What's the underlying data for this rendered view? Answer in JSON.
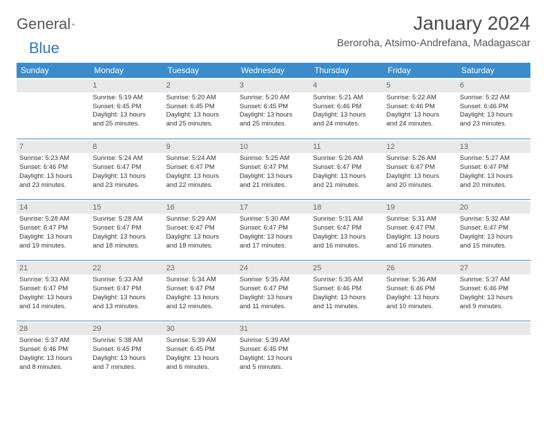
{
  "logo": {
    "word1": "General",
    "word2": "Blue"
  },
  "title": "January 2024",
  "location": "Beroroha, Atsimo-Andrefana, Madagascar",
  "colors": {
    "header_bg": "#3b8ccc",
    "header_text": "#ffffff",
    "daynum_bg": "#e8e8e8",
    "daynum_text": "#666666",
    "rule": "#3b8ccc",
    "body_text": "#333333",
    "logo_gray": "#555555",
    "logo_blue": "#2f78c4"
  },
  "day_headers": [
    "Sunday",
    "Monday",
    "Tuesday",
    "Wednesday",
    "Thursday",
    "Friday",
    "Saturday"
  ],
  "weeks": [
    [
      {
        "n": "",
        "sr": "",
        "ss": "",
        "d1": "",
        "d2": ""
      },
      {
        "n": "1",
        "sr": "Sunrise: 5:19 AM",
        "ss": "Sunset: 6:45 PM",
        "d1": "Daylight: 13 hours",
        "d2": "and 25 minutes."
      },
      {
        "n": "2",
        "sr": "Sunrise: 5:20 AM",
        "ss": "Sunset: 6:45 PM",
        "d1": "Daylight: 13 hours",
        "d2": "and 25 minutes."
      },
      {
        "n": "3",
        "sr": "Sunrise: 5:20 AM",
        "ss": "Sunset: 6:45 PM",
        "d1": "Daylight: 13 hours",
        "d2": "and 25 minutes."
      },
      {
        "n": "4",
        "sr": "Sunrise: 5:21 AM",
        "ss": "Sunset: 6:46 PM",
        "d1": "Daylight: 13 hours",
        "d2": "and 24 minutes."
      },
      {
        "n": "5",
        "sr": "Sunrise: 5:22 AM",
        "ss": "Sunset: 6:46 PM",
        "d1": "Daylight: 13 hours",
        "d2": "and 24 minutes."
      },
      {
        "n": "6",
        "sr": "Sunrise: 5:22 AM",
        "ss": "Sunset: 6:46 PM",
        "d1": "Daylight: 13 hours",
        "d2": "and 23 minutes."
      }
    ],
    [
      {
        "n": "7",
        "sr": "Sunrise: 5:23 AM",
        "ss": "Sunset: 6:46 PM",
        "d1": "Daylight: 13 hours",
        "d2": "and 23 minutes."
      },
      {
        "n": "8",
        "sr": "Sunrise: 5:24 AM",
        "ss": "Sunset: 6:47 PM",
        "d1": "Daylight: 13 hours",
        "d2": "and 23 minutes."
      },
      {
        "n": "9",
        "sr": "Sunrise: 5:24 AM",
        "ss": "Sunset: 6:47 PM",
        "d1": "Daylight: 13 hours",
        "d2": "and 22 minutes."
      },
      {
        "n": "10",
        "sr": "Sunrise: 5:25 AM",
        "ss": "Sunset: 6:47 PM",
        "d1": "Daylight: 13 hours",
        "d2": "and 21 minutes."
      },
      {
        "n": "11",
        "sr": "Sunrise: 5:26 AM",
        "ss": "Sunset: 6:47 PM",
        "d1": "Daylight: 13 hours",
        "d2": "and 21 minutes."
      },
      {
        "n": "12",
        "sr": "Sunrise: 5:26 AM",
        "ss": "Sunset: 6:47 PM",
        "d1": "Daylight: 13 hours",
        "d2": "and 20 minutes."
      },
      {
        "n": "13",
        "sr": "Sunrise: 5:27 AM",
        "ss": "Sunset: 6:47 PM",
        "d1": "Daylight: 13 hours",
        "d2": "and 20 minutes."
      }
    ],
    [
      {
        "n": "14",
        "sr": "Sunrise: 5:28 AM",
        "ss": "Sunset: 6:47 PM",
        "d1": "Daylight: 13 hours",
        "d2": "and 19 minutes."
      },
      {
        "n": "15",
        "sr": "Sunrise: 5:28 AM",
        "ss": "Sunset: 6:47 PM",
        "d1": "Daylight: 13 hours",
        "d2": "and 18 minutes."
      },
      {
        "n": "16",
        "sr": "Sunrise: 5:29 AM",
        "ss": "Sunset: 6:47 PM",
        "d1": "Daylight: 13 hours",
        "d2": "and 18 minutes."
      },
      {
        "n": "17",
        "sr": "Sunrise: 5:30 AM",
        "ss": "Sunset: 6:47 PM",
        "d1": "Daylight: 13 hours",
        "d2": "and 17 minutes."
      },
      {
        "n": "18",
        "sr": "Sunrise: 5:31 AM",
        "ss": "Sunset: 6:47 PM",
        "d1": "Daylight: 13 hours",
        "d2": "and 16 minutes."
      },
      {
        "n": "19",
        "sr": "Sunrise: 5:31 AM",
        "ss": "Sunset: 6:47 PM",
        "d1": "Daylight: 13 hours",
        "d2": "and 16 minutes."
      },
      {
        "n": "20",
        "sr": "Sunrise: 5:32 AM",
        "ss": "Sunset: 6:47 PM",
        "d1": "Daylight: 13 hours",
        "d2": "and 15 minutes."
      }
    ],
    [
      {
        "n": "21",
        "sr": "Sunrise: 5:33 AM",
        "ss": "Sunset: 6:47 PM",
        "d1": "Daylight: 13 hours",
        "d2": "and 14 minutes."
      },
      {
        "n": "22",
        "sr": "Sunrise: 5:33 AM",
        "ss": "Sunset: 6:47 PM",
        "d1": "Daylight: 13 hours",
        "d2": "and 13 minutes."
      },
      {
        "n": "23",
        "sr": "Sunrise: 5:34 AM",
        "ss": "Sunset: 6:47 PM",
        "d1": "Daylight: 13 hours",
        "d2": "and 12 minutes."
      },
      {
        "n": "24",
        "sr": "Sunrise: 5:35 AM",
        "ss": "Sunset: 6:47 PM",
        "d1": "Daylight: 13 hours",
        "d2": "and 11 minutes."
      },
      {
        "n": "25",
        "sr": "Sunrise: 5:35 AM",
        "ss": "Sunset: 6:46 PM",
        "d1": "Daylight: 13 hours",
        "d2": "and 11 minutes."
      },
      {
        "n": "26",
        "sr": "Sunrise: 5:36 AM",
        "ss": "Sunset: 6:46 PM",
        "d1": "Daylight: 13 hours",
        "d2": "and 10 minutes."
      },
      {
        "n": "27",
        "sr": "Sunrise: 5:37 AM",
        "ss": "Sunset: 6:46 PM",
        "d1": "Daylight: 13 hours",
        "d2": "and 9 minutes."
      }
    ],
    [
      {
        "n": "28",
        "sr": "Sunrise: 5:37 AM",
        "ss": "Sunset: 6:46 PM",
        "d1": "Daylight: 13 hours",
        "d2": "and 8 minutes."
      },
      {
        "n": "29",
        "sr": "Sunrise: 5:38 AM",
        "ss": "Sunset: 6:45 PM",
        "d1": "Daylight: 13 hours",
        "d2": "and 7 minutes."
      },
      {
        "n": "30",
        "sr": "Sunrise: 5:39 AM",
        "ss": "Sunset: 6:45 PM",
        "d1": "Daylight: 13 hours",
        "d2": "and 6 minutes."
      },
      {
        "n": "31",
        "sr": "Sunrise: 5:39 AM",
        "ss": "Sunset: 6:45 PM",
        "d1": "Daylight: 13 hours",
        "d2": "and 5 minutes."
      },
      {
        "n": "",
        "sr": "",
        "ss": "",
        "d1": "",
        "d2": ""
      },
      {
        "n": "",
        "sr": "",
        "ss": "",
        "d1": "",
        "d2": ""
      },
      {
        "n": "",
        "sr": "",
        "ss": "",
        "d1": "",
        "d2": ""
      }
    ]
  ]
}
